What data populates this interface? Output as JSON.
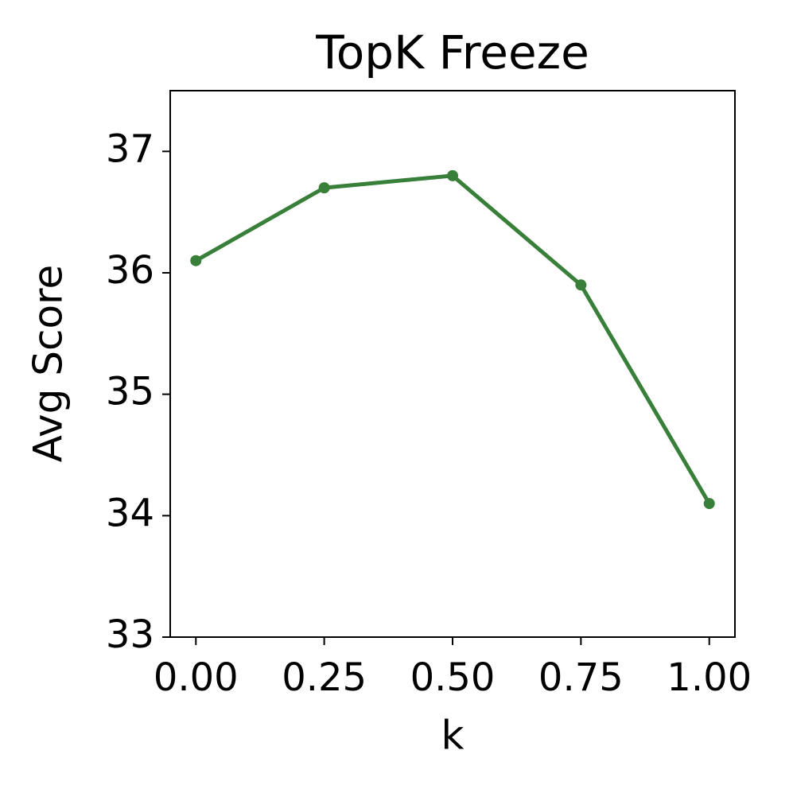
{
  "chart_data": {
    "type": "line",
    "title": "TopK Freeze",
    "x_label": "k",
    "y_label": "Avg Score",
    "x": [
      0,
      0.25,
      0.5,
      0.75,
      1.0
    ],
    "values": [
      36.1,
      36.7,
      36.8,
      35.9,
      34.1
    ],
    "color": "#38803a",
    "xlim": [
      -0.05,
      1.05
    ],
    "xticks": [
      {
        "value": 0,
        "label": "0.00"
      },
      {
        "value": 0.25,
        "label": "0.25"
      },
      {
        "value": 0.5,
        "label": "0.50"
      },
      {
        "value": 0.75,
        "label": "0.75"
      },
      {
        "value": 1.0,
        "label": "1.00"
      }
    ],
    "ylim": [
      33,
      37.5
    ],
    "yticks": [
      33,
      34,
      35,
      36,
      37
    ],
    "grid": false
  }
}
